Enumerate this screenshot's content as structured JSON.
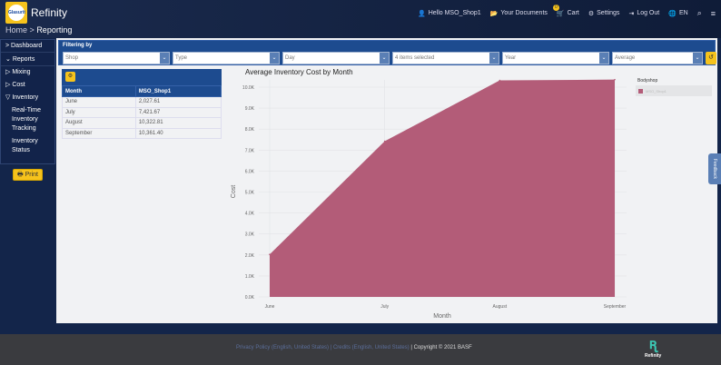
{
  "app": {
    "title": "Refinity",
    "logo_text": "Glasurit"
  },
  "breadcrumb": {
    "home": "Home",
    "separator": ">",
    "current": "Reporting"
  },
  "topnav": {
    "user": "Hello MSO_Shop1",
    "documents": "Your Documents",
    "cart": "Cart",
    "cart_count": "0",
    "settings": "Settings",
    "logout": "Log Out",
    "lang": "EN"
  },
  "sidebar": {
    "items": [
      {
        "label": "Dashboard"
      },
      {
        "label": "Reports"
      },
      {
        "label": "Mixing"
      },
      {
        "label": "Cost"
      },
      {
        "label": "Inventory"
      },
      {
        "label": "Real-Time Inventory Tracking"
      },
      {
        "label": "Inventory Status"
      }
    ],
    "print": "Print"
  },
  "filter": {
    "label": "Filtering by",
    "selects": [
      "Shop",
      "Type",
      "Day",
      "4 items selected",
      "Year",
      "Average"
    ]
  },
  "table": {
    "headers": [
      "Month",
      "MSO_Shop1"
    ],
    "rows": [
      [
        "June",
        "2,027.61"
      ],
      [
        "July",
        "7,421.67"
      ],
      [
        "August",
        "10,322.81"
      ],
      [
        "September",
        "10,361.40"
      ]
    ]
  },
  "chart_data": {
    "type": "area",
    "title": "Average Inventory Cost by Month",
    "xlabel": "Month",
    "ylabel": "Cost",
    "categories": [
      "June",
      "July",
      "August",
      "September"
    ],
    "series": [
      {
        "name": "MSO_Shop1",
        "values": [
          2027.61,
          7421.67,
          10322.81,
          10361.4
        ],
        "color": "#b35c78"
      }
    ],
    "ylim": [
      0,
      10000
    ],
    "yticks": [
      "0.0K",
      "1.0K",
      "2.0K",
      "3.0K",
      "4.0K",
      "5.0K",
      "6.0K",
      "7.0K",
      "8.0K",
      "9.0K",
      "10.0K"
    ],
    "legend_title": "Bodyshop",
    "legend_position": "right",
    "grid": true
  },
  "feedback": "Feedback",
  "footer": {
    "privacy": "Privacy Policy (English, United States)",
    "credits": "Credits (English, United States)",
    "copyright": "Copyright © 2021 BASF",
    "logo_text": "Refinity"
  }
}
